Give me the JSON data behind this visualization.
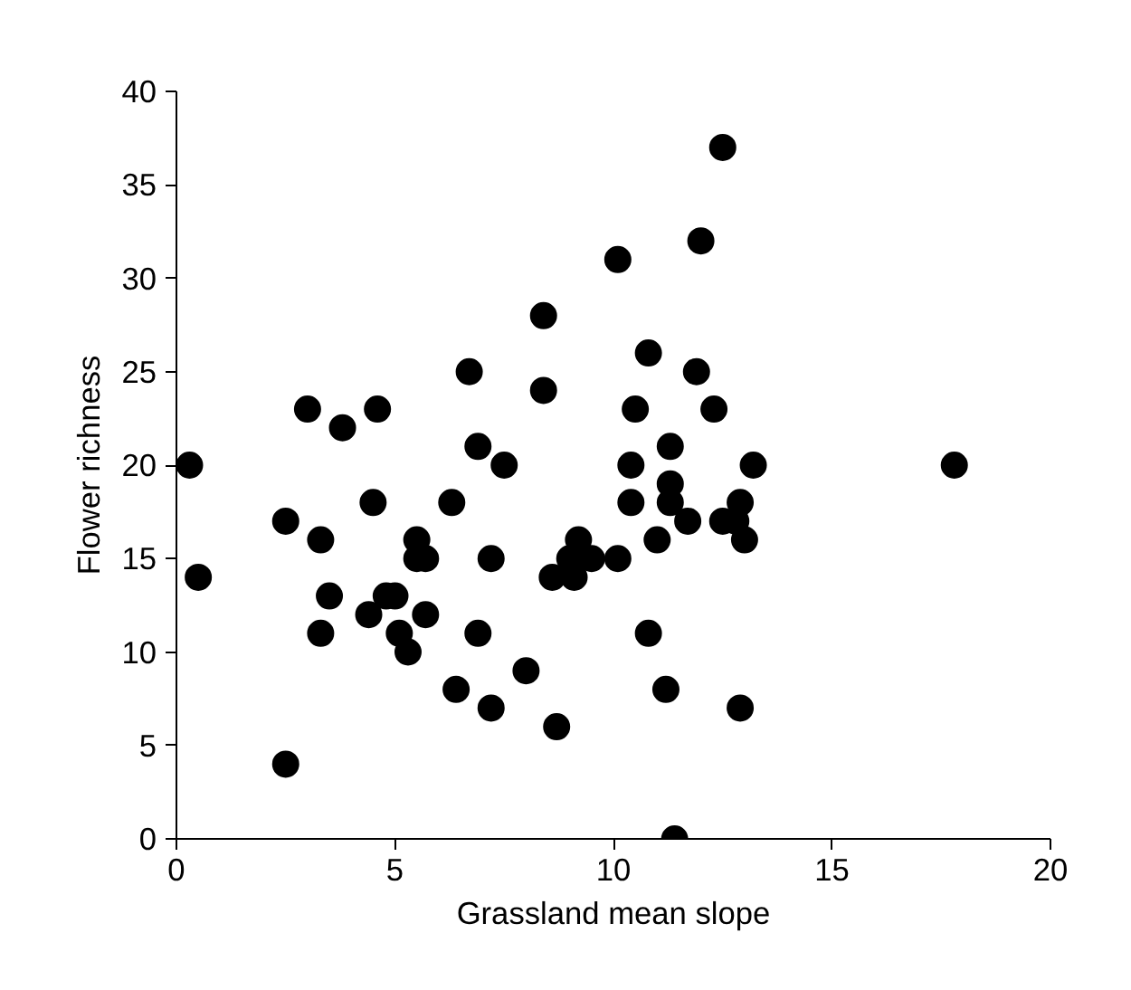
{
  "chart_data": {
    "type": "scatter",
    "xlabel": "Grassland mean slope",
    "ylabel": "Flower richness",
    "x": [
      0.3,
      0.5,
      2.5,
      2.5,
      3.0,
      3.3,
      3.3,
      3.5,
      3.8,
      4.4,
      4.5,
      4.6,
      4.8,
      5.0,
      5.1,
      5.3,
      5.5,
      5.5,
      5.7,
      5.7,
      6.3,
      6.4,
      6.7,
      6.9,
      6.9,
      7.2,
      7.2,
      7.5,
      8.0,
      8.4,
      8.4,
      8.6,
      8.7,
      9.0,
      9.1,
      9.2,
      9.5,
      10.1,
      10.1,
      10.4,
      10.4,
      10.5,
      10.8,
      10.8,
      11.0,
      11.2,
      11.3,
      11.3,
      11.3,
      11.4,
      11.7,
      11.9,
      12.0,
      12.3,
      12.5,
      12.5,
      12.8,
      12.9,
      12.9,
      13.0,
      13.2,
      17.8
    ],
    "values": [
      20,
      14,
      4,
      17,
      23,
      16,
      11,
      13,
      22,
      12,
      18,
      23,
      13,
      13,
      11,
      10,
      16,
      15,
      15,
      12,
      18,
      8,
      25,
      21,
      11,
      15,
      7,
      20,
      9,
      24,
      28,
      14,
      6,
      15,
      14,
      16,
      15,
      31,
      15,
      20,
      18,
      23,
      11,
      26,
      16,
      8,
      19,
      18,
      21,
      0,
      17,
      25,
      32,
      23,
      37,
      17,
      17,
      18,
      7,
      16,
      20,
      20
    ],
    "color": "#000000",
    "marker": "circle",
    "xlim": [
      0,
      20
    ],
    "xticks": [
      0,
      5,
      10,
      15,
      20
    ],
    "ylim": [
      0,
      40
    ],
    "yticks": [
      0,
      5,
      10,
      15,
      20,
      25,
      30,
      35,
      40
    ],
    "grid": false
  }
}
